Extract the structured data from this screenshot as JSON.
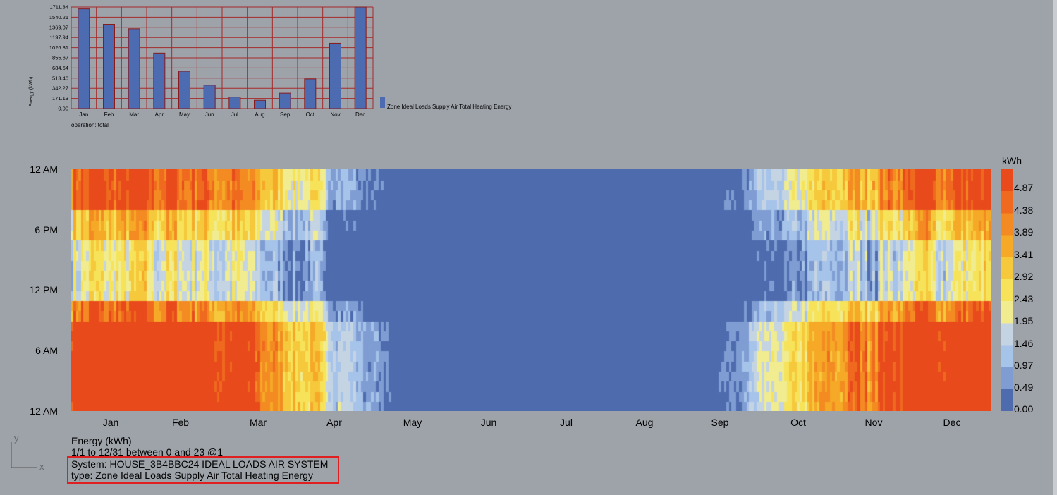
{
  "monthly_chart": {
    "chart_data": {
      "type": "bar",
      "ylabel": "Energy (kWh)",
      "categories": [
        "Jan",
        "Feb",
        "Mar",
        "Apr",
        "May",
        "Jun",
        "Jul",
        "Aug",
        "Sep",
        "Oct",
        "Nov",
        "Dec"
      ],
      "values": [
        1680,
        1420,
        1345,
        935,
        630,
        395,
        195,
        140,
        260,
        500,
        1100,
        1711.34
      ],
      "ylim": [
        0,
        1711.34
      ],
      "yticks": [
        "0.00",
        "171.13",
        "342.27",
        "513.40",
        "684.54",
        "855.67",
        "1026.81",
        "1197.94",
        "1369.07",
        "1540.21",
        "1711.34"
      ],
      "series": [
        {
          "name": "Zone Ideal Loads Supply Air Total Heating Energy",
          "color": "#4d6bb0"
        }
      ],
      "grid": true,
      "grid_color": "#a52a2a"
    },
    "operation_label": "operation: total"
  },
  "heatmap": {
    "y_labels": [
      "12 AM",
      "6 PM",
      "12 PM",
      "6 AM",
      "12 AM"
    ],
    "x_labels": [
      "Jan",
      "Feb",
      "Mar",
      "Apr",
      "May",
      "Jun",
      "Jul",
      "Aug",
      "Sep",
      "Oct",
      "Nov",
      "Dec"
    ],
    "legend": {
      "unit": "kWh",
      "ticks": [
        "4.87",
        "4.38",
        "3.89",
        "3.41",
        "2.92",
        "2.43",
        "1.95",
        "1.46",
        "0.97",
        "0.49",
        "0.00"
      ],
      "colors": [
        "#e84a1c",
        "#ef6a1e",
        "#f38a22",
        "#f5a927",
        "#f6c83c",
        "#f6e35a",
        "#f0ec8f",
        "#c5d4e3",
        "#a6c3ea",
        "#7f9dd3",
        "#4d6bad"
      ]
    }
  },
  "info": {
    "title": "Energy (kWh)",
    "range": "1/1 to 12/31 between 0 and 23 @1",
    "system": "System: HOUSE_3B4BBC24 IDEAL LOADS AIR SYSTEM",
    "type": "type: Zone Ideal Loads Supply Air Total Heating Energy"
  },
  "viewport": {
    "axis_y": "y",
    "axis_x": "x"
  }
}
